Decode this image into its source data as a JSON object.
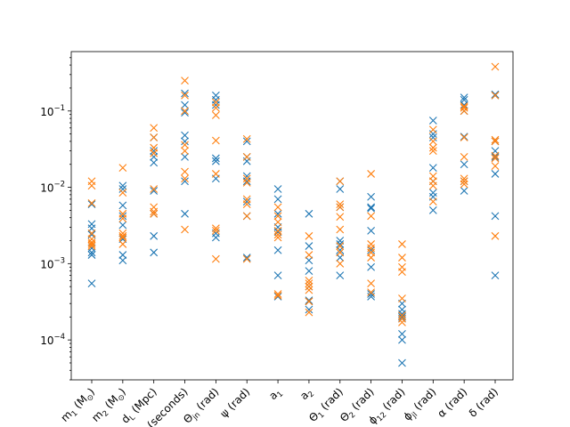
{
  "chart_data": {
    "type": "scatter",
    "yscale": "log",
    "ylim": [
      3e-05,
      0.6
    ],
    "yticks": [
      {
        "value": 0.0001,
        "base": "10",
        "exp": "−4"
      },
      {
        "value": 0.001,
        "base": "10",
        "exp": "−3"
      },
      {
        "value": 0.01,
        "base": "10",
        "exp": "−2"
      },
      {
        "value": 0.1,
        "base": "10",
        "exp": "−1"
      }
    ],
    "categories": [
      "m1 (M⊙)",
      "m2 (M⊙)",
      "dL (Mpc)",
      "tc (seconds)",
      "Θjn (rad)",
      "ψ (rad)",
      "a1",
      "a2",
      "Θ1 (rad)",
      "Θ2 (rad)",
      "ϕ12 (rad)",
      "ϕjl (rad)",
      "α (rad)",
      "δ (rad)"
    ],
    "tick_labels": [
      {
        "main": "m",
        "sub": "1",
        "rest": " (M",
        "sub2": "⊙",
        "end": ")"
      },
      {
        "main": "m",
        "sub": "2",
        "rest": " (M",
        "sub2": "⊙",
        "end": ")"
      },
      {
        "main": "d",
        "sub": "L",
        "rest": " (Mpc)",
        "sub2": "",
        "end": ""
      },
      {
        "main": "t",
        "sub": "c",
        "rest": " (seconds)",
        "sub2": "",
        "end": ""
      },
      {
        "main": "Θ",
        "sub": "jn",
        "rest": " (rad)",
        "sub2": "",
        "end": ""
      },
      {
        "main": "ψ",
        "sub": "",
        "rest": " (rad)",
        "sub2": "",
        "end": ""
      },
      {
        "main": "a",
        "sub": "1",
        "rest": "",
        "sub2": "",
        "end": ""
      },
      {
        "main": "a",
        "sub": "2",
        "rest": "",
        "sub2": "",
        "end": ""
      },
      {
        "main": "Θ",
        "sub": "1",
        "rest": " (rad)",
        "sub2": "",
        "end": ""
      },
      {
        "main": "Θ",
        "sub": "2",
        "rest": " (rad)",
        "sub2": "",
        "end": ""
      },
      {
        "main": "ϕ",
        "sub": "12",
        "rest": " (rad)",
        "sub2": "",
        "end": ""
      },
      {
        "main": "ϕ",
        "sub": "jl",
        "rest": " (rad)",
        "sub2": "",
        "end": ""
      },
      {
        "main": "α",
        "sub": "",
        "rest": " (rad)",
        "sub2": "",
        "end": ""
      },
      {
        "main": "δ",
        "sub": "",
        "rest": " (rad)",
        "sub2": "",
        "end": ""
      }
    ],
    "marker": "x",
    "series": [
      {
        "color": "#1f77b4",
        "values": [
          [
            0.0033,
            0.0029,
            0.0024,
            0.0016,
            0.0014,
            0.0013,
            0.00055,
            0.006
          ],
          [
            0.0105,
            0.0095,
            0.0058,
            0.0042,
            0.0032,
            0.0021,
            0.0013,
            0.0011
          ],
          [
            0.045,
            0.03,
            0.025,
            0.021,
            0.009,
            0.0045,
            0.0023,
            0.0014
          ],
          [
            0.17,
            0.12,
            0.095,
            0.048,
            0.04,
            0.025,
            0.012,
            0.0045
          ],
          [
            0.16,
            0.14,
            0.12,
            0.024,
            0.022,
            0.013,
            0.0025,
            0.0022
          ],
          [
            0.04,
            0.025,
            0.022,
            0.014,
            0.012,
            0.0065,
            0.0042,
            0.0012
          ],
          [
            0.0095,
            0.007,
            0.0045,
            0.003,
            0.0026,
            0.0015,
            0.0007,
            0.00037
          ],
          [
            0.0045,
            0.0017,
            0.0011,
            0.0008,
            0.0005,
            0.00033,
            0.00032,
            0.00025
          ],
          [
            0.012,
            0.0095,
            0.0055,
            0.002,
            0.0018,
            0.0015,
            0.0012,
            0.0007
          ],
          [
            0.0075,
            0.0055,
            0.0053,
            0.0027,
            0.0015,
            0.0009,
            0.0004,
            0.00037
          ],
          [
            0.0003,
            0.00022,
            0.0002,
            0.00019,
            0.00012,
            0.0001,
            5e-05,
            0.00025
          ],
          [
            0.075,
            0.05,
            0.045,
            0.018,
            0.012,
            0.0085,
            0.0075,
            0.005
          ],
          [
            0.15,
            0.14,
            0.12,
            0.1,
            0.046,
            0.02,
            0.012,
            0.009
          ],
          [
            0.165,
            0.16,
            0.04,
            0.03,
            0.025,
            0.015,
            0.0042,
            0.0007
          ]
        ]
      },
      {
        "color": "#ff7f0e",
        "values": [
          [
            0.012,
            0.0105,
            0.0062,
            0.0025,
            0.0021,
            0.0019,
            0.0018,
            0.0017
          ],
          [
            0.018,
            0.0085,
            0.0045,
            0.0039,
            0.0025,
            0.0023,
            0.0022,
            0.0018
          ],
          [
            0.06,
            0.045,
            0.033,
            0.028,
            0.0095,
            0.0055,
            0.0048,
            0.0045
          ],
          [
            0.25,
            0.16,
            0.1,
            0.036,
            0.03,
            0.016,
            0.013,
            0.0028
          ],
          [
            0.13,
            0.11,
            0.088,
            0.041,
            0.015,
            0.0029,
            0.0027,
            0.00115
          ],
          [
            0.043,
            0.025,
            0.013,
            0.0115,
            0.007,
            0.006,
            0.0042,
            0.00115
          ],
          [
            0.0055,
            0.0042,
            0.0035,
            0.0027,
            0.0024,
            0.0022,
            0.0004,
            0.00038
          ],
          [
            0.0023,
            0.0013,
            0.0006,
            0.00055,
            0.0005,
            0.00045,
            0.00032,
            0.00023
          ],
          [
            0.012,
            0.006,
            0.0055,
            0.0041,
            0.0028,
            0.0017,
            0.0014,
            0.001
          ],
          [
            0.015,
            0.0042,
            0.0018,
            0.0016,
            0.0014,
            0.0012,
            0.00055,
            0.00042
          ],
          [
            0.0018,
            0.0012,
            0.0009,
            0.00078,
            0.00035,
            0.00021,
            0.00019,
            0.00017
          ],
          [
            0.057,
            0.04,
            0.033,
            0.03,
            0.014,
            0.012,
            0.0105,
            0.0065
          ],
          [
            0.115,
            0.11,
            0.1,
            0.045,
            0.025,
            0.013,
            0.012,
            0.011
          ],
          [
            0.38,
            0.16,
            0.042,
            0.04,
            0.026,
            0.024,
            0.019,
            0.0023
          ]
        ]
      }
    ]
  }
}
